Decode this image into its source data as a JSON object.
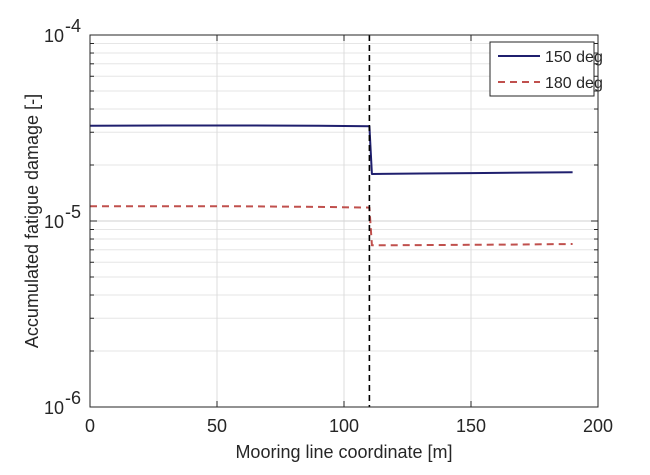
{
  "chart_data": {
    "type": "line",
    "xlabel": "Mooring line coordinate [m]",
    "ylabel": "Accumulated fatigue damage [-]",
    "xlim": [
      0,
      200
    ],
    "ylim": [
      1e-06,
      0.0001
    ],
    "yscale": "log",
    "xticks": [
      0,
      50,
      100,
      150,
      200
    ],
    "xtick_labels": [
      "0",
      "50",
      "100",
      "150",
      "200"
    ],
    "yticks": [
      1e-06,
      1e-05,
      0.0001
    ],
    "ytick_labels": [
      {
        "base": "10",
        "exp": "-6"
      },
      {
        "base": "10",
        "exp": "-5"
      },
      {
        "base": "10",
        "exp": "-4"
      }
    ],
    "grid": true,
    "legend_position": "top-right",
    "vertical_line": {
      "x": 110,
      "style": "dashed",
      "color": "#000000"
    },
    "series": [
      {
        "name": "150 deg",
        "color": "#1f1f6e",
        "style": "solid",
        "x": [
          0,
          30,
          60,
          90,
          110,
          111,
          130,
          150,
          170,
          190
        ],
        "y": [
          3.25e-05,
          3.26e-05,
          3.26e-05,
          3.25e-05,
          3.23e-05,
          1.79e-05,
          1.8e-05,
          1.81e-05,
          1.82e-05,
          1.83e-05
        ]
      },
      {
        "name": "180 deg",
        "color": "#c0504d",
        "style": "dashed",
        "x": [
          0,
          30,
          60,
          90,
          110,
          111,
          130,
          150,
          170,
          190
        ],
        "y": [
          1.2e-05,
          1.2e-05,
          1.2e-05,
          1.19e-05,
          1.18e-05,
          7.4e-06,
          7.42e-06,
          7.45e-06,
          7.48e-06,
          7.52e-06
        ]
      }
    ]
  }
}
